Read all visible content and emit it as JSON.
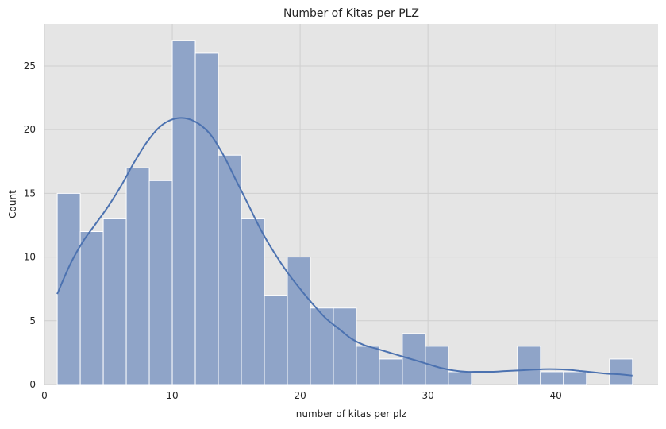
{
  "chart_data": {
    "type": "bar",
    "title": "Number of Kitas per PLZ",
    "xlabel": "number of kitas per plz",
    "ylabel": "Count",
    "bin_edges": [
      1,
      2.8,
      4.6,
      6.4,
      8.2,
      10,
      11.8,
      13.6,
      15.4,
      17.2,
      19,
      20.8,
      22.6,
      24.4,
      26.2,
      28,
      29.8,
      31.6,
      33.4,
      35.2,
      37,
      38.8,
      40.6,
      42.4,
      44.2,
      46
    ],
    "values": [
      15,
      12,
      13,
      17,
      16,
      27,
      26,
      18,
      13,
      7,
      10,
      6,
      6,
      3,
      2,
      4,
      3,
      1,
      0,
      0,
      3,
      1,
      1,
      0,
      2
    ],
    "kde": {
      "name": "",
      "x": [
        1,
        2,
        3,
        4,
        5,
        6,
        7,
        8,
        9,
        10,
        11,
        12,
        13,
        14,
        15,
        16,
        17,
        18,
        19,
        20,
        21,
        22,
        23,
        24,
        25,
        26,
        27,
        28,
        29,
        30,
        31,
        32,
        33,
        34,
        35,
        36,
        37,
        38,
        39,
        40,
        41,
        42,
        43,
        44,
        45,
        46
      ],
      "y": [
        7.1,
        9.4,
        11.2,
        12.6,
        14.0,
        15.6,
        17.4,
        19.0,
        20.2,
        20.8,
        20.9,
        20.5,
        19.6,
        18.0,
        16.0,
        14.0,
        12.0,
        10.3,
        8.8,
        7.5,
        6.3,
        5.2,
        4.4,
        3.6,
        3.1,
        2.8,
        2.5,
        2.2,
        1.9,
        1.6,
        1.3,
        1.1,
        1.0,
        1.0,
        1.0,
        1.05,
        1.1,
        1.15,
        1.2,
        1.2,
        1.15,
        1.05,
        0.95,
        0.85,
        0.8,
        0.7
      ]
    },
    "xlim": [
      0,
      48
    ],
    "ylim": [
      0,
      28.3
    ],
    "xticks": [
      0,
      10,
      20,
      30,
      40
    ],
    "yticks": [
      0,
      5,
      10,
      15,
      20,
      25
    ],
    "grid": true,
    "colors": {
      "bar_fill": "#8fa4c8",
      "bar_edge": "#ffffff",
      "kde_line": "#4c72b0",
      "plot_background": "#e5e5e5",
      "grid": "#cfcfcf"
    }
  }
}
